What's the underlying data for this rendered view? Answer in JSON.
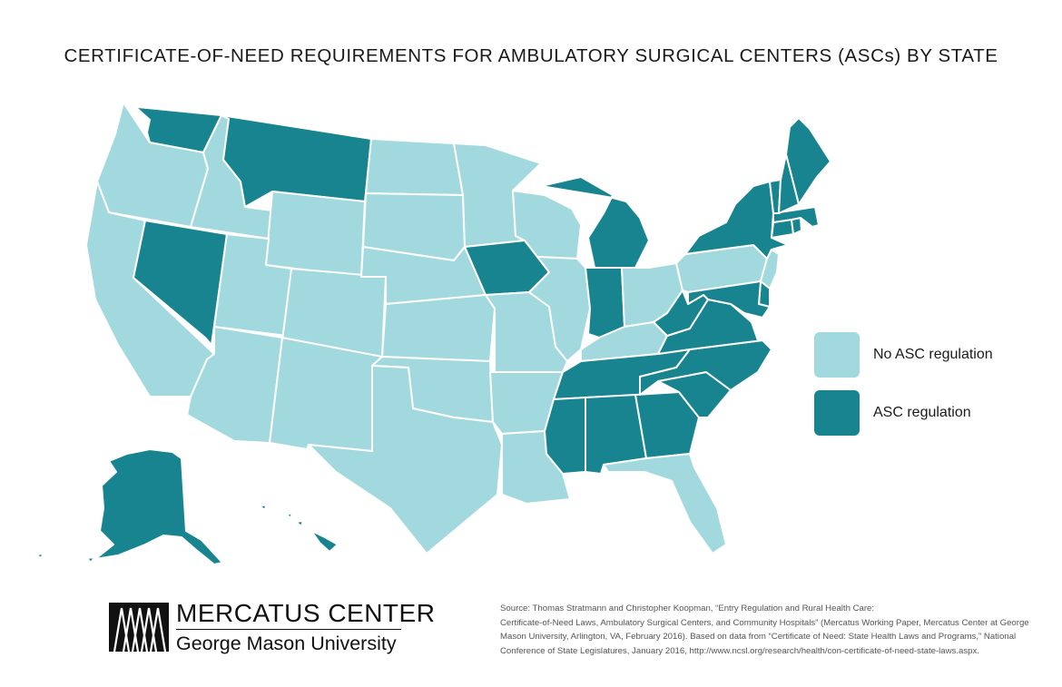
{
  "title": "CERTIFICATE-OF-NEED REQUIREMENTS FOR AMBULATORY SURGICAL CENTERS (ASCs) BY STATE",
  "colors": {
    "none": "#a2d9df",
    "regulated": "#17848f",
    "border": "#ffffff"
  },
  "legend": [
    {
      "key": "none",
      "label": "No ASC regulation"
    },
    {
      "key": "regulated",
      "label": "ASC regulation"
    }
  ],
  "states": {
    "WA": "regulated",
    "OR": "none",
    "CA": "none",
    "NV": "regulated",
    "ID": "none",
    "MT": "regulated",
    "WY": "none",
    "UT": "none",
    "AZ": "none",
    "CO": "none",
    "NM": "none",
    "ND": "none",
    "SD": "none",
    "NE": "none",
    "KS": "none",
    "OK": "none",
    "TX": "none",
    "MN": "none",
    "IA": "regulated",
    "MO": "none",
    "AR": "none",
    "LA": "none",
    "WI": "none",
    "IL": "none",
    "MI": "regulated",
    "IN": "regulated",
    "OH": "none",
    "KY": "none",
    "TN": "regulated",
    "MS": "regulated",
    "AL": "regulated",
    "GA": "regulated",
    "FL": "none",
    "SC": "regulated",
    "NC": "regulated",
    "VA": "regulated",
    "WV": "regulated",
    "PA": "none",
    "NY": "regulated",
    "NJ": "none",
    "DE": "regulated",
    "MD": "regulated",
    "CT": "regulated",
    "RI": "regulated",
    "MA": "regulated",
    "VT": "regulated",
    "NH": "regulated",
    "ME": "regulated",
    "AK": "regulated",
    "HI": "regulated"
  },
  "brand": {
    "name": "MERCATUS CENTER",
    "subtitle": "George Mason University"
  },
  "source": [
    "Source: Thomas Stratmann and Christopher Koopman, “Entry Regulation and Rural Health Care:",
    "Certificate-of-Need Laws, Ambulatory Surgical Centers, and Community Hospitals” (Mercatus Working Paper, Mercatus Center at George",
    "Mason University, Arlington, VA, February 2016). Based on data from “Certificate of Need: State Health Laws and Programs,” National",
    "Conference of State Legislatures, January 2016, http://www.ncsl.org/research/health/con-certificate-of-need-state-laws.aspx."
  ]
}
